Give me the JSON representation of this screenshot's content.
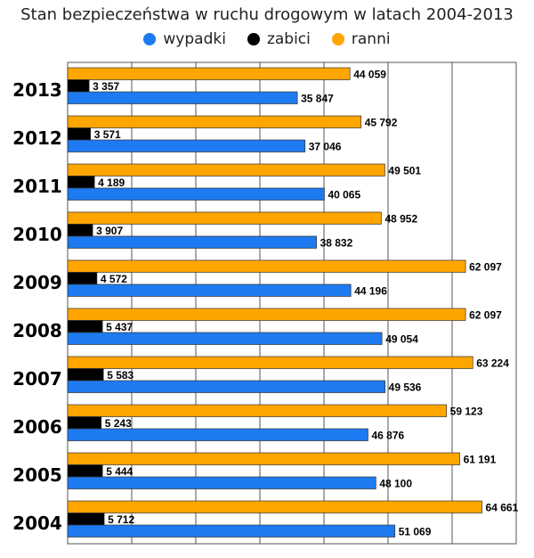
{
  "chart_data": {
    "type": "bar",
    "orientation": "horizontal",
    "title": "Stan bezpieczeństwa w ruchu drogowym w latach 2004-2013",
    "categories": [
      "2013",
      "2012",
      "2011",
      "2010",
      "2009",
      "2008",
      "2007",
      "2006",
      "2005",
      "2004"
    ],
    "series": [
      {
        "name": "ranni",
        "color": "#FFA500",
        "values": [
          44059,
          45792,
          49501,
          48952,
          62097,
          62097,
          63224,
          59123,
          61191,
          64661
        ],
        "labels": [
          "44 059",
          "45 792",
          "49 501",
          "48 952",
          "62 097",
          "62 097",
          "63 224",
          "59 123",
          "61 191",
          "64 661"
        ]
      },
      {
        "name": "zabici",
        "color": "#000000",
        "values": [
          3357,
          3571,
          4189,
          3907,
          4572,
          5437,
          5583,
          5243,
          5444,
          5712
        ],
        "labels": [
          "3 357",
          "3 571",
          "4 189",
          "3 907",
          "4 572",
          "5 437",
          "5 583",
          "5 243",
          "5 444",
          "5 712"
        ]
      },
      {
        "name": "wypadki",
        "color": "#1E7AF0",
        "values": [
          35847,
          37046,
          40065,
          38832,
          44196,
          49054,
          49536,
          46876,
          48100,
          51069
        ],
        "labels": [
          "35 847",
          "37 046",
          "40 065",
          "38 832",
          "44 196",
          "49 054",
          "49 536",
          "46 876",
          "48 100",
          "51 069"
        ]
      }
    ],
    "legend": {
      "placement": "top",
      "order": [
        "wypadki",
        "zabici",
        "ranni"
      ]
    },
    "xlim": [
      0,
      70000
    ],
    "grid": true
  }
}
